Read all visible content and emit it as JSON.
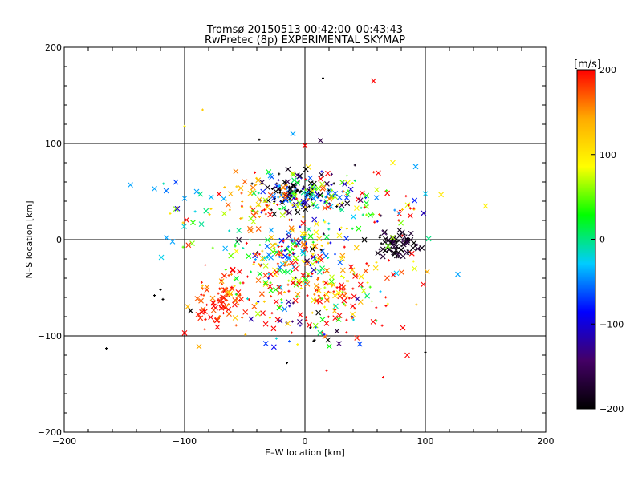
{
  "chart_data": {
    "type": "scatter",
    "title": "Tromsø 20150513 00:42:00–00:43:43",
    "subtitle": "RwPretec (8p) EXPERIMENTAL SKYMAP",
    "xlabel": "E–W location [km]",
    "ylabel": "N–S location [km]",
    "xlim": [
      -200,
      200
    ],
    "ylim": [
      -200,
      200
    ],
    "x_ticks": [
      "−200",
      "−100",
      "0",
      "100",
      "200"
    ],
    "y_ticks": [
      "−200",
      "−100",
      "0",
      "100",
      "200"
    ],
    "grid_values": [
      -100,
      0,
      100
    ],
    "colorbar": {
      "label": "[m/s]",
      "range": [
        -200,
        200
      ],
      "ticks": [
        "200",
        "100",
        "0",
        "−100",
        "−200"
      ],
      "colors": [
        "#000000",
        "#440066",
        "#0000ff",
        "#00ccff",
        "#00ff00",
        "#ffff00",
        "#ffaa00",
        "#ff0000"
      ]
    },
    "clusters": [
      {
        "cx": -70,
        "cy": -65,
        "sx": 10,
        "sy": 12,
        "n": 90,
        "vmean": 180,
        "vsd": 25
      },
      {
        "cx": -5,
        "cy": 50,
        "sx": 14,
        "sy": 9,
        "n": 140,
        "vmean": -150,
        "vsd": 90
      },
      {
        "cx": 10,
        "cy": 45,
        "sx": 20,
        "sy": 12,
        "n": 80,
        "vmean": 40,
        "vsd": 130
      },
      {
        "cx": -10,
        "cy": -15,
        "sx": 22,
        "sy": 18,
        "n": 170,
        "vmean": 30,
        "vsd": 130
      },
      {
        "cx": 75,
        "cy": -5,
        "sx": 10,
        "sy": 6,
        "n": 70,
        "vmean": -185,
        "vsd": 20
      },
      {
        "cx": 25,
        "cy": -55,
        "sx": 14,
        "sy": 12,
        "n": 70,
        "vmean": 150,
        "vsd": 60
      },
      {
        "cx": -40,
        "cy": 40,
        "sx": 14,
        "sy": 12,
        "n": 55,
        "vmean": 150,
        "vsd": 60
      },
      {
        "cx": 60,
        "cy": 35,
        "sx": 22,
        "sy": 18,
        "n": 50,
        "vmean": 60,
        "vsd": 140
      },
      {
        "cx": 5,
        "cy": -85,
        "sx": 25,
        "sy": 15,
        "n": 60,
        "vmean": 50,
        "vsd": 150
      },
      {
        "cx": -30,
        "cy": -45,
        "sx": 20,
        "sy": 18,
        "n": 70,
        "vmean": 120,
        "vsd": 90
      },
      {
        "cx": 55,
        "cy": -40,
        "sx": 25,
        "sy": 20,
        "n": 45,
        "vmean": 130,
        "vsd": 80
      },
      {
        "cx": -95,
        "cy": 30,
        "sx": 15,
        "sy": 20,
        "n": 25,
        "vmean": 0,
        "vsd": 140
      }
    ],
    "outliers": [
      {
        "x": 57,
        "y": 165,
        "v": 200,
        "m": "x"
      },
      {
        "x": 15,
        "y": 168,
        "v": -200,
        "m": "+"
      },
      {
        "x": -100,
        "y": 118,
        "v": 95,
        "m": "+"
      },
      {
        "x": -85,
        "y": 135,
        "v": 120,
        "m": "+"
      },
      {
        "x": -145,
        "y": 57,
        "v": -40,
        "m": "x"
      },
      {
        "x": -125,
        "y": 53,
        "v": -40,
        "m": "x"
      },
      {
        "x": 92,
        "y": 76,
        "v": -40,
        "m": "x"
      },
      {
        "x": 150,
        "y": 35,
        "v": 95,
        "m": "x"
      },
      {
        "x": 127,
        "y": -36,
        "v": -40,
        "m": "x"
      },
      {
        "x": -165,
        "y": -113,
        "v": -200,
        "m": "+"
      },
      {
        "x": 100,
        "y": -117,
        "v": -200,
        "m": "+"
      },
      {
        "x": -88,
        "y": -111,
        "v": 140,
        "m": "x"
      },
      {
        "x": -100,
        "y": -97,
        "v": 200,
        "m": "x"
      },
      {
        "x": -125,
        "y": -58,
        "v": -200,
        "m": "+"
      },
      {
        "x": -120,
        "y": -52,
        "v": -200,
        "m": "+"
      },
      {
        "x": -118,
        "y": -62,
        "v": -200,
        "m": "+"
      },
      {
        "x": -95,
        "y": -74,
        "v": -200,
        "m": "x"
      },
      {
        "x": -115,
        "y": 2,
        "v": -40,
        "m": "x"
      },
      {
        "x": -110,
        "y": -2,
        "v": -40,
        "m": "x"
      },
      {
        "x": -90,
        "y": 50,
        "v": -40,
        "m": "x"
      },
      {
        "x": -100,
        "y": 43,
        "v": -40,
        "m": "x"
      },
      {
        "x": 65,
        "y": -143,
        "v": 200,
        "m": "+"
      },
      {
        "x": 18,
        "y": -136,
        "v": 200,
        "m": "+"
      },
      {
        "x": -15,
        "y": -128,
        "v": -200,
        "m": "+"
      },
      {
        "x": 85,
        "y": -120,
        "v": 200,
        "m": "x"
      },
      {
        "x": 13,
        "y": 103,
        "v": -160,
        "m": "x"
      },
      {
        "x": -38,
        "y": 104,
        "v": -200,
        "m": "+"
      },
      {
        "x": -10,
        "y": 110,
        "v": -40,
        "m": "x"
      },
      {
        "x": 0,
        "y": 98,
        "v": 200,
        "m": "x"
      },
      {
        "x": 73,
        "y": 80,
        "v": 95,
        "m": "x"
      }
    ]
  }
}
